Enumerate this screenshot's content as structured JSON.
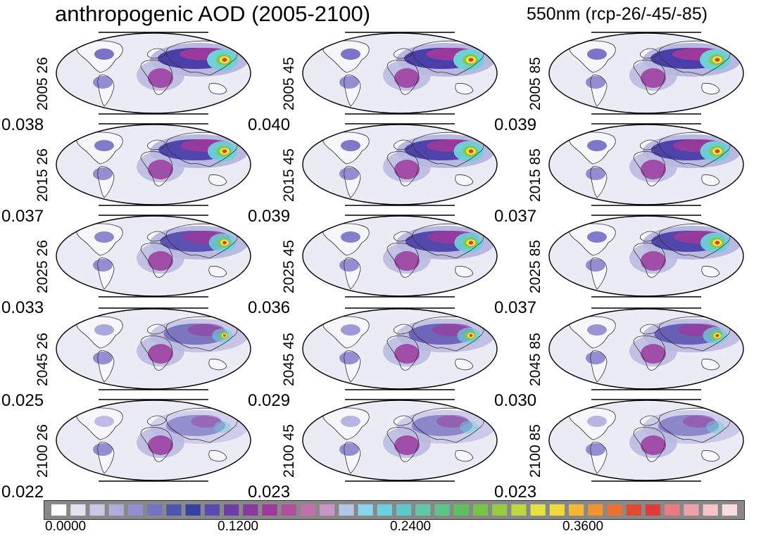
{
  "title_left": "anthropogenic AOD (2005-2100)",
  "title_right": "550nm (rcp-26/-45/-85)",
  "colors": {
    "ocean": "#ebebf6",
    "land": "#f6f6fb",
    "plume_light": "#b9b8e0",
    "plume_mid": "#7a74c8",
    "plume_dark": "#4a3fa8",
    "plume_magenta": "#9a3a9c",
    "hotspot_cyan": "#6fd0d8",
    "hotspot_green": "#7ccc4a",
    "hotspot_yellow": "#f2e64a",
    "hotspot_red": "#e23a2a",
    "coastline": "#333333"
  },
  "grid": {
    "columns": [
      "26",
      "45",
      "85"
    ],
    "rows": [
      {
        "year": "2005",
        "labels": [
          "2005 26",
          "2005 45",
          "2005 85"
        ],
        "means": [
          "0.038",
          "0.040",
          "0.039"
        ],
        "intensity": [
          1.0,
          1.0,
          1.0
        ]
      },
      {
        "year": "2015",
        "labels": [
          "2015 26",
          "2015 45",
          "2015 85"
        ],
        "means": [
          "0.037",
          "0.039",
          "0.037"
        ],
        "intensity": [
          0.95,
          0.97,
          0.97
        ]
      },
      {
        "year": "2025",
        "labels": [
          "2025 26",
          "2025 45",
          "2025 85"
        ],
        "means": [
          "0.033",
          "0.036",
          "0.037"
        ],
        "intensity": [
          0.85,
          0.92,
          0.95
        ]
      },
      {
        "year": "2045",
        "labels": [
          "2045 26",
          "2045 45",
          "2045 85"
        ],
        "means": [
          "0.025",
          "0.029",
          "0.030"
        ],
        "intensity": [
          0.6,
          0.7,
          0.75
        ]
      },
      {
        "year": "2100",
        "labels": [
          "2100 26",
          "2100 45",
          "2100 85"
        ],
        "means": [
          "0.022",
          "0.023",
          "0.023"
        ],
        "intensity": [
          0.45,
          0.5,
          0.5
        ]
      }
    ]
  },
  "colorbar": {
    "tick_labels": [
      "0.0000",
      "0.1200",
      "0.2400",
      "0.3600"
    ],
    "tick_values": [
      0.0,
      0.12,
      0.24,
      0.36
    ],
    "range": [
      0.0,
      0.48
    ],
    "swatches": [
      "#ffffff",
      "#e2e2f0",
      "#c8c8e6",
      "#aeaedc",
      "#9090cf",
      "#7474c2",
      "#4a56b0",
      "#3440a2",
      "#5a4ab0",
      "#6e3ea6",
      "#8a3a9e",
      "#a03a98",
      "#b0509c",
      "#c070aa",
      "#c895c4",
      "#b0c8e6",
      "#88d4ec",
      "#6ccfe0",
      "#5ec8c8",
      "#60c8a8",
      "#5cc488",
      "#60c060",
      "#78c448",
      "#98cc40",
      "#c0d840",
      "#e4e23c",
      "#f2d83a",
      "#f2b832",
      "#f09430",
      "#ec7030",
      "#e04a30",
      "#e03a3a",
      "#ec7a80",
      "#f0a0a8",
      "#f4c4c8",
      "#f8dcde"
    ]
  }
}
